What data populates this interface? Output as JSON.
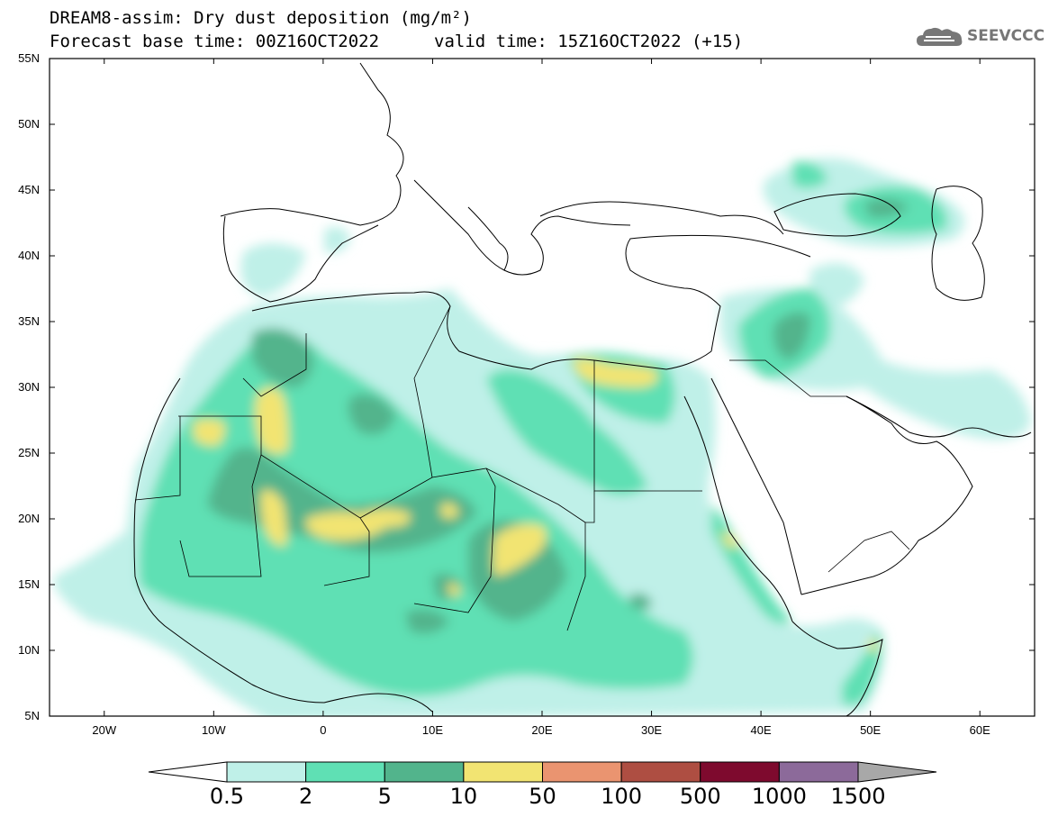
{
  "header": {
    "title_line1": "DREAM8-assim: Dry dust deposition (mg/m²)",
    "title_line2": "Forecast base time: 00Z16OCT2022",
    "valid_time": "valid time: 15Z16OCT2022 (+15)",
    "logo_text": "SEEVCCC",
    "logo_icon": "cloud-icon"
  },
  "map": {
    "lon_range": [
      -25,
      65
    ],
    "lat_range": [
      5,
      55
    ],
    "lat_labels": [
      "5N",
      "10N",
      "15N",
      "20N",
      "25N",
      "30N",
      "35N",
      "40N",
      "45N",
      "50N",
      "55N"
    ],
    "lon_labels": [
      "20W",
      "10W",
      "0",
      "10E",
      "20E",
      "30E",
      "40E",
      "50E",
      "60E"
    ]
  },
  "colorbar": {
    "labels": [
      "0.5",
      "2",
      "5",
      "10",
      "50",
      "100",
      "500",
      "1000",
      "1500"
    ],
    "colors": [
      "#bff0e8",
      "#5fe0b4",
      "#52b48c",
      "#f2e472",
      "#ea9470",
      "#ae4e42",
      "#7e0a2e",
      "#8c6a9a"
    ],
    "under_color": "#ffffff",
    "over_color": "#a8a8a8"
  }
}
